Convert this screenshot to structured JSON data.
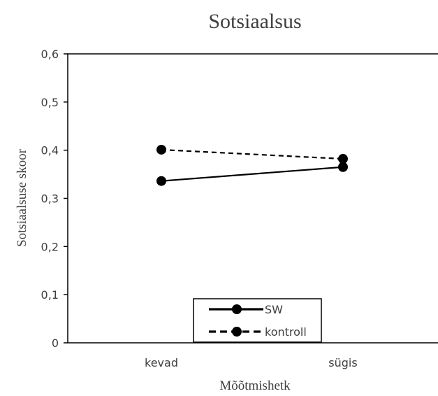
{
  "chart_data": {
    "type": "line",
    "title": "Sotsiaalsus",
    "xlabel": "Mõõtmishetk",
    "ylabel": "Sotsiaalsuse skoor",
    "categories": [
      "kevad",
      "sügis"
    ],
    "ylim": [
      0,
      0.6
    ],
    "yticks": [
      "0",
      "0,1",
      "0,2",
      "0,3",
      "0,4",
      "0,5",
      "0,6"
    ],
    "grid": false,
    "legend_position": "bottom-center",
    "series": [
      {
        "name": "SW",
        "values": [
          0.336,
          0.365
        ],
        "line_style": "solid",
        "color": "#000000"
      },
      {
        "name": "kontroll",
        "values": [
          0.401,
          0.382
        ],
        "line_style": "dashed",
        "color": "#000000"
      }
    ]
  }
}
